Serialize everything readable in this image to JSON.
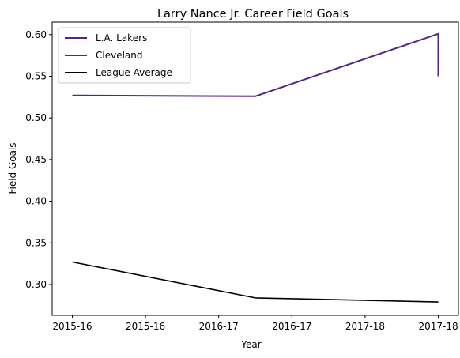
{
  "chart_data": {
    "type": "line",
    "title": "Larry Nance Jr. Career Field Goals",
    "xlabel": "Year",
    "ylabel": "Field Goals",
    "x_tick_labels": [
      "2015-16",
      "2015-16",
      "2016-17",
      "2016-17",
      "2017-18",
      "2017-18"
    ],
    "x_tick_positions": [
      0,
      0.4,
      0.8,
      1.2,
      1.6,
      2.0
    ],
    "xlim": [
      -0.11,
      2.11
    ],
    "y_ticks": [
      "0.30",
      "0.35",
      "0.40",
      "0.45",
      "0.50",
      "0.55",
      "0.60"
    ],
    "ylim": [
      0.263,
      0.615
    ],
    "grid": false,
    "legend_position": "upper left",
    "series": [
      {
        "name": "L.A. Lakers",
        "color": "#552583",
        "x": [
          0,
          1,
          2,
          2
        ],
        "y": [
          0.527,
          0.526,
          0.601,
          0.55
        ]
      },
      {
        "name": "Cleveland",
        "color": "#6f263d",
        "x": [],
        "y": []
      },
      {
        "name": "League Average",
        "color": "#000000",
        "x": [
          0,
          1,
          2
        ],
        "y": [
          0.327,
          0.284,
          0.279
        ]
      }
    ]
  }
}
